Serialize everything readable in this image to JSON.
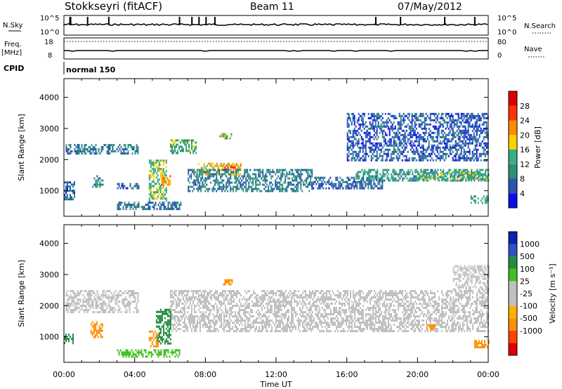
{
  "header": {
    "station": "Stokkseyri (fitACF)",
    "beam": "Beam 11",
    "date": "07/May/2012"
  },
  "strips": {
    "nsky_label": "N.Sky",
    "nsky_ticks": [
      "10^5",
      "10^0"
    ],
    "nsearch_label": "N.Search",
    "nsearch_ticks": [
      "10^5",
      "10^0"
    ],
    "freq_label": "Freq.",
    "freq_unit": "[MHz]",
    "freq_ticks": [
      "18",
      "8"
    ],
    "nave_label": "Nave",
    "nave_ticks": [
      "80",
      "0"
    ],
    "cpid_label": "CPID",
    "cpid_value": "normal 150"
  },
  "colors": {
    "power_scale": [
      "#0a10e8",
      "#2a55b0",
      "#2f8f7a",
      "#35b080",
      "#ffd000",
      "#ff8c00",
      "#ff3300",
      "#dd0000"
    ],
    "velocity_scale": [
      "#e00000",
      "#ff4400",
      "#ff9000",
      "#ffb000",
      "#c0c0c0",
      "#c0c0c0",
      "#40c020",
      "#208c40",
      "#3050c0",
      "#1020b0"
    ]
  },
  "chart_data": [
    {
      "type": "heatmap",
      "name": "Power",
      "xlabel": "",
      "ylabel": "Slant Range [km]",
      "yticks": [
        1000,
        2000,
        3000,
        4000
      ],
      "ylim": [
        180,
        4600
      ],
      "xlim_hours": [
        0,
        24
      ],
      "colorbar_label": "Power [dB]",
      "colorbar_ticks": [
        4,
        8,
        12,
        16,
        20,
        24,
        28
      ],
      "colorbar_range": [
        0,
        32
      ],
      "echo_regions": [
        {
          "t0": 0.1,
          "t1": 4.2,
          "r0": 2200,
          "r1": 2500,
          "value": 9
        },
        {
          "t0": 0.0,
          "t1": 0.6,
          "r0": 750,
          "r1": 1300,
          "value": 7
        },
        {
          "t0": 1.6,
          "t1": 2.2,
          "r0": 1100,
          "r1": 1500,
          "value": 9
        },
        {
          "t0": 3.0,
          "t1": 4.3,
          "r0": 1050,
          "r1": 1250,
          "value": 7
        },
        {
          "t0": 3.0,
          "t1": 6.6,
          "r0": 400,
          "r1": 650,
          "value": 8
        },
        {
          "t0": 4.8,
          "t1": 5.8,
          "r0": 700,
          "r1": 2000,
          "value": 15
        },
        {
          "t0": 5.5,
          "t1": 6.0,
          "r0": 1200,
          "r1": 1500,
          "value": 22
        },
        {
          "t0": 6.0,
          "t1": 7.5,
          "r0": 2200,
          "r1": 2650,
          "value": 13
        },
        {
          "t0": 7.5,
          "t1": 10.0,
          "r0": 1500,
          "r1": 1900,
          "value": 18
        },
        {
          "t0": 9.0,
          "t1": 10.0,
          "r0": 1650,
          "r1": 1850,
          "value": 24
        },
        {
          "t0": 8.8,
          "t1": 9.5,
          "r0": 2650,
          "r1": 2850,
          "value": 14
        },
        {
          "t0": 7.0,
          "t1": 14.0,
          "r0": 1000,
          "r1": 1700,
          "value": 9
        },
        {
          "t0": 14.0,
          "t1": 18.0,
          "r0": 1050,
          "r1": 1450,
          "value": 7
        },
        {
          "t0": 16.5,
          "t1": 24.0,
          "r0": 1300,
          "r1": 1700,
          "value": 11
        },
        {
          "t0": 20.0,
          "t1": 24.0,
          "r0": 1350,
          "r1": 1600,
          "value": 14
        },
        {
          "t0": 23.0,
          "t1": 24.0,
          "r0": 600,
          "r1": 850,
          "value": 12
        },
        {
          "t0": 16.0,
          "t1": 24.0,
          "r0": 2000,
          "r1": 3500,
          "value": 6
        }
      ]
    },
    {
      "type": "heatmap",
      "name": "Velocity",
      "xlabel": "Time UT",
      "ylabel": "Slant Range [km]",
      "yticks": [
        1000,
        2000,
        3000,
        4000
      ],
      "ylim": [
        180,
        4600
      ],
      "xlim_hours": [
        0,
        24
      ],
      "xticks": [
        "00:00",
        "04:00",
        "08:00",
        "12:00",
        "16:00",
        "20:00",
        "00:00"
      ],
      "colorbar_label": "Velocity [m s⁻¹]",
      "colorbar_ticks": [
        "1000",
        "500",
        "100",
        "25",
        "-25",
        "-100",
        "-500",
        "-1000"
      ],
      "echo_regions": [
        {
          "t0": 0.1,
          "t1": 4.2,
          "r0": 1800,
          "r1": 2500,
          "value": 0
        },
        {
          "t0": 6.0,
          "t1": 24.0,
          "r0": 1200,
          "r1": 2500,
          "value": 0
        },
        {
          "t0": 22.0,
          "t1": 24.0,
          "r0": 2500,
          "r1": 3300,
          "value": 0
        },
        {
          "t0": 1.5,
          "t1": 2.2,
          "r0": 1000,
          "r1": 1500,
          "value": -300
        },
        {
          "t0": 5.2,
          "t1": 6.0,
          "r0": 800,
          "r1": 1900,
          "value": 150
        },
        {
          "t0": 4.8,
          "t1": 5.3,
          "r0": 700,
          "r1": 1200,
          "value": -300
        },
        {
          "t0": 3.0,
          "t1": 6.5,
          "r0": 350,
          "r1": 600,
          "value": 80
        },
        {
          "t0": 9.0,
          "t1": 9.6,
          "r0": 2650,
          "r1": 2850,
          "value": -300
        },
        {
          "t0": 20.5,
          "t1": 21.0,
          "r0": 1200,
          "r1": 1400,
          "value": -150
        },
        {
          "t0": 23.2,
          "t1": 24.0,
          "r0": 650,
          "r1": 900,
          "value": -400
        },
        {
          "t0": 0.0,
          "t1": 0.5,
          "r0": 800,
          "r1": 1100,
          "value": 200
        }
      ]
    }
  ]
}
